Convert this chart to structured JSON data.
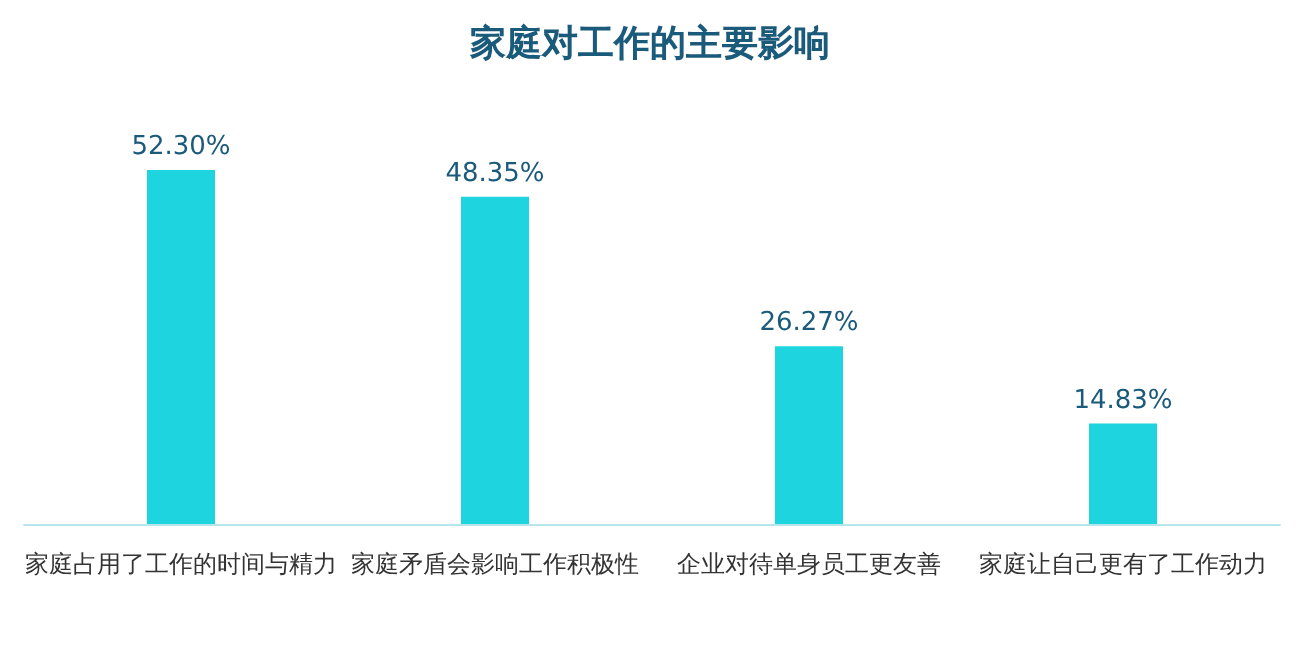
{
  "chart_data": {
    "type": "bar",
    "title": "家庭对工作的主要影响",
    "categories": [
      "家庭占用了工作的时间与精力",
      "家庭矛盾会影响工作积极性",
      "企业对待单身员工更友善",
      "家庭让自己更有了工作动力"
    ],
    "values": [
      52.3,
      48.35,
      26.27,
      14.83
    ],
    "value_labels": [
      "52.30%",
      "48.35%",
      "26.27%",
      "14.83%"
    ],
    "color": "#1ed4de"
  }
}
